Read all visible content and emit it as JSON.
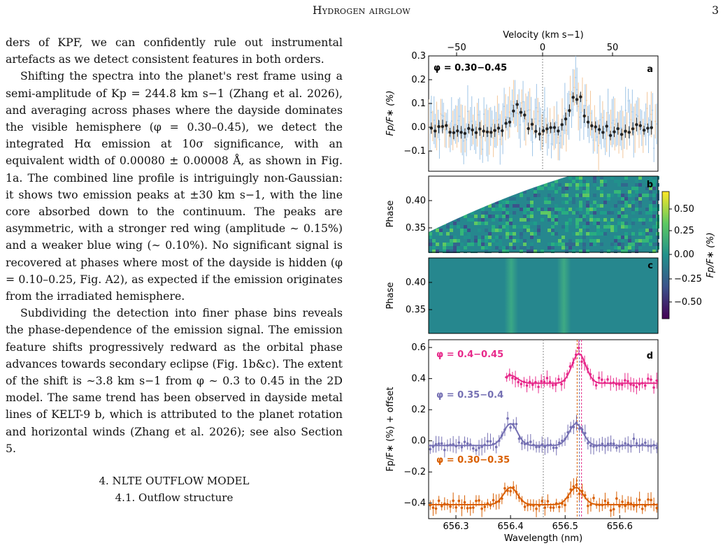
{
  "header": {
    "running_title": "Hydrogen airglow",
    "page_number": "3"
  },
  "body": {
    "p1": "ders of KPF, we can confidently rule out instrumental artefacts as we detect consistent features in both orders.",
    "p2": "Shifting the spectra into the planet's rest frame using a semi-amplitude of Kp = 244.8 km s−1 (Zhang et al. 2026), and averaging across phases where the dayside dominates the visible hemisphere (φ = 0.30–0.45), we detect the integrated Hα emission at 10σ significance, with an equivalent width of 0.00080 ± 0.00008 Å, as shown in Fig. 1a. The combined line profile is intriguingly non-Gaussian: it shows two emission peaks at ±30 km s−1, with the line core absorbed down to the continuum. The peaks are asymmetric, with a stronger red wing (amplitude ∼ 0.15%) and a weaker blue wing (∼ 0.10%). No significant signal is recovered at phases where most of the dayside is hidden (φ = 0.10–0.25, Fig. A2), as expected if the emission originates from the irradiated hemisphere.",
    "p3": "Subdividing the detection into finer phase bins reveals the phase-dependence of the emission signal. The emission feature shifts progressively redward as the orbital phase advances towards secondary eclipse (Fig. 1b&c). The extent of the shift is ∼3.8 km s−1 from φ ∼ 0.3 to 0.45 in the 2D model. The same trend has been observed in dayside metal lines of KELT-9 b, which is attributed to the planet rotation and horizontal winds (Zhang et al. 2026); see also Section 5.",
    "section_heading": "4. NLTE OUTFLOW MODEL",
    "subsection_heading": "4.1. Outflow structure"
  },
  "figure": {
    "top_axis_label": "Velocity (km s−1)",
    "top_ticks": [
      "−50",
      "0",
      "50"
    ],
    "bottom_axis_label": "Wavelength (nm)",
    "x_ticks": [
      "656.3",
      "656.4",
      "656.5",
      "656.6"
    ],
    "colors": {
      "blue_err": "#9ec4e6",
      "orange_err": "#f3c79b",
      "binned": "#222222",
      "pink": "#e7298a",
      "purple": "#7570b3",
      "orange": "#d95f02"
    },
    "panel_a": {
      "label": "a",
      "phase_text": "φ = 0.30−0.45",
      "y_label": "Fp/F∗ (%)",
      "y_ticks": [
        "0.3",
        "0.2",
        "0.1",
        "0.0",
        "−0.1"
      ]
    },
    "panel_b": {
      "label": "b",
      "y_label": "Phase",
      "y_ticks": [
        "0.40",
        "0.35"
      ]
    },
    "panel_c": {
      "label": "c",
      "y_label": "Phase",
      "y_ticks": [
        "0.40",
        "0.35"
      ]
    },
    "colorbar": {
      "label": "Fp/F∗ (%)",
      "ticks": [
        "0.50",
        "0.25",
        "0.00",
        "−0.25",
        "−0.50"
      ]
    },
    "panel_d": {
      "label": "d",
      "y_label": "Fp/F∗ (%) + offset",
      "y_ticks": [
        "0.6",
        "0.4",
        "0.2",
        "0.0",
        "−0.2",
        "−0.4"
      ],
      "series_labels": [
        "φ = 0.4−0.45",
        "φ = 0.35−0.4",
        "φ = 0.30−0.35"
      ]
    }
  }
}
